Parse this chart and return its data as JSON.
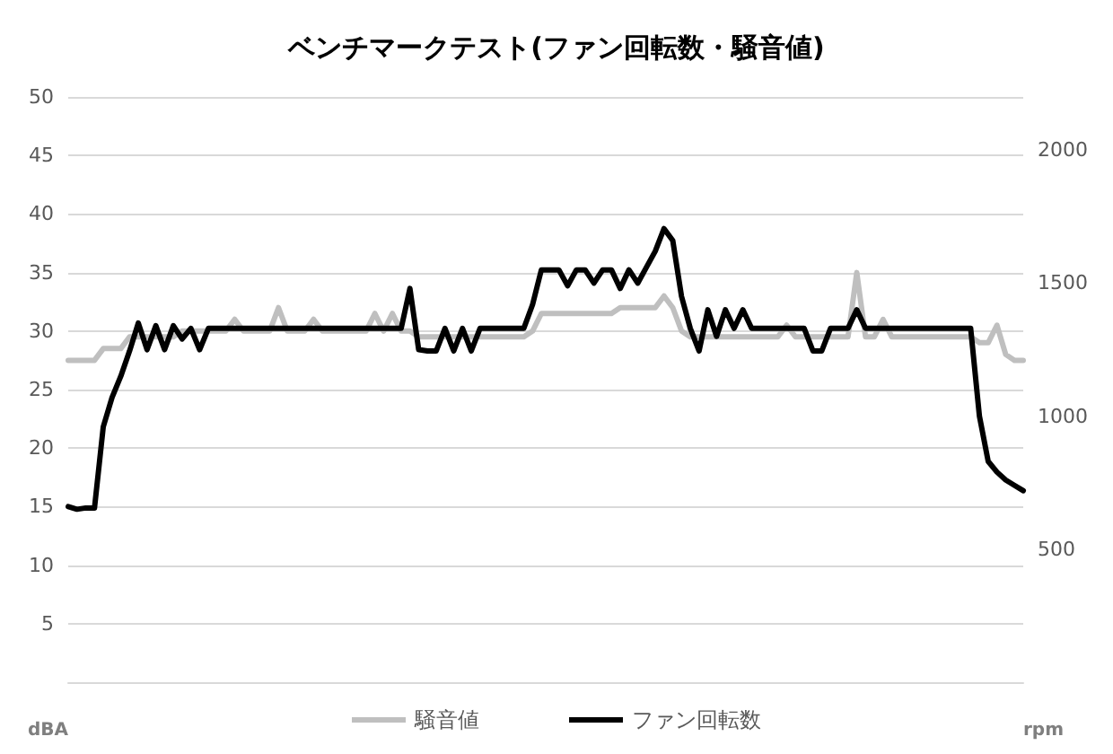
{
  "chart_data": {
    "type": "line",
    "title": "ベンチマークテスト(ファン回転数・騒音値)",
    "categories": [
      null,
      null,
      null,
      null,
      null,
      null,
      null,
      null,
      null,
      null,
      null,
      null,
      null,
      null,
      null,
      null,
      null,
      null,
      null,
      null,
      null,
      null,
      null,
      null,
      null,
      null,
      null,
      null,
      null,
      null,
      null,
      null,
      null,
      null,
      null,
      null,
      null,
      null,
      null,
      null,
      null,
      null,
      null,
      null,
      null,
      null,
      null,
      null,
      null,
      null,
      null,
      null,
      null,
      null,
      null,
      null,
      null,
      null,
      null,
      null,
      null,
      null,
      null,
      null,
      null,
      null,
      null,
      null,
      null,
      null,
      null,
      null,
      null,
      null,
      null,
      null,
      null,
      null,
      null,
      null,
      null,
      null,
      null,
      null,
      null,
      null,
      null,
      null,
      null,
      null,
      null,
      null,
      null,
      null,
      null,
      null,
      null,
      null,
      null,
      null,
      null,
      null,
      null,
      null,
      null,
      null,
      null,
      null,
      null,
      null
    ],
    "series": [
      {
        "name": "騒音値",
        "color": "#bfbfbf",
        "values": [
          27.5,
          27.5,
          27.5,
          27.5,
          28.5,
          28.5,
          28.5,
          29.5,
          29.5,
          29.5,
          29.5,
          29.5,
          29.5,
          30,
          30,
          30,
          30,
          30,
          30,
          31,
          30,
          30,
          30,
          30,
          32,
          30,
          30,
          30,
          31,
          30,
          30,
          30,
          30,
          30,
          30,
          31.5,
          30,
          31.5,
          30,
          30,
          29.5,
          29.5,
          29.5,
          29.5,
          29.5,
          29.5,
          29.5,
          29.5,
          29.5,
          29.5,
          29.5,
          29.5,
          29.5,
          30,
          31.5,
          31.5,
          31.5,
          31.5,
          31.5,
          31.5,
          31.5,
          31.5,
          31.5,
          32,
          32,
          32,
          32,
          32,
          33,
          32,
          30,
          29.5,
          29.5,
          29.5,
          29.5,
          29.5,
          29.5,
          29.5,
          29.5,
          29.5,
          29.5,
          29.5,
          30.5,
          29.5,
          29.5,
          29.5,
          29.5,
          29.5,
          29.5,
          29.5,
          35,
          29.5,
          29.5,
          31,
          29.5,
          29.5,
          29.5,
          29.5,
          29.5,
          29.5,
          29.5,
          29.5,
          29.5,
          29.5,
          29,
          29,
          30.5,
          28,
          27.5,
          27.5
        ]
      },
      {
        "name": "ファン回転数",
        "color": "#000000",
        "axis": "y2",
        "values": [
          660,
          650,
          655,
          655,
          960,
          1070,
          1150,
          1245,
          1350,
          1250,
          1340,
          1250,
          1340,
          1290,
          1330,
          1250,
          1330,
          1330,
          1330,
          1330,
          1330,
          1330,
          1330,
          1330,
          1330,
          1330,
          1330,
          1330,
          1330,
          1330,
          1330,
          1330,
          1330,
          1330,
          1330,
          1330,
          1330,
          1330,
          1330,
          1480,
          1250,
          1245,
          1245,
          1330,
          1245,
          1330,
          1245,
          1330,
          1330,
          1330,
          1330,
          1330,
          1330,
          1420,
          1550,
          1550,
          1550,
          1490,
          1550,
          1550,
          1500,
          1550,
          1550,
          1480,
          1550,
          1500,
          1560,
          1620,
          1705,
          1660,
          1450,
          1330,
          1245,
          1400,
          1300,
          1400,
          1330,
          1400,
          1330,
          1330,
          1330,
          1330,
          1330,
          1330,
          1330,
          1245,
          1245,
          1330,
          1330,
          1330,
          1400,
          1330,
          1330,
          1330,
          1330,
          1330,
          1330,
          1330,
          1330,
          1330,
          1330,
          1330,
          1330,
          1330,
          1000,
          830,
          790,
          760,
          740,
          720
        ]
      }
    ],
    "ylabel": "dBA",
    "y2label": "rpm",
    "ylim": [
      0,
      50
    ],
    "yticks": [
      5,
      10,
      15,
      20,
      25,
      30,
      35,
      40,
      45,
      50
    ],
    "y2lim": [
      0,
      2200
    ],
    "y2ticks": [
      500,
      1000,
      1500,
      2000
    ],
    "grid": "y",
    "legend": "bottom",
    "marker": "none",
    "line_style": "solid"
  }
}
